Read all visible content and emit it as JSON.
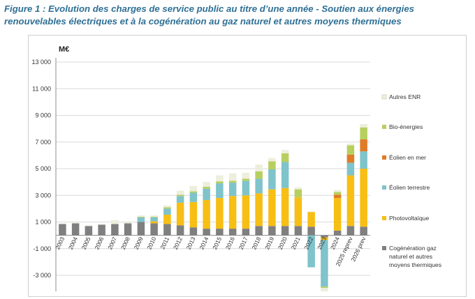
{
  "figure": {
    "title_line1": "Figure 1 : Evolution des charges de service public au titre d’une année - Soutien aux énergies",
    "title_line2": "renouvelables électriques et à la cogénération au gaz naturel et autres moyens thermiques"
  },
  "chart_data": {
    "type": "bar",
    "stacked": true,
    "unit_label": "M€",
    "ylim": [
      -4200,
      13000
    ],
    "yticks": [
      13000,
      11000,
      9000,
      7000,
      5000,
      3000,
      1000,
      -1000,
      -3000
    ],
    "ytick_labels": [
      "13 000",
      "11 000",
      "9 000",
      "7 000",
      "5 000",
      "3 000",
      "1 000",
      "-1 000",
      "-3 000"
    ],
    "grid": "horizontal",
    "legend_position": "right",
    "categories": [
      "2003",
      "2004",
      "2005",
      "2006",
      "2007",
      "2008",
      "2009",
      "2010",
      "2011",
      "2012",
      "2013",
      "2014",
      "2015",
      "2016",
      "2017",
      "2018",
      "2019",
      "2020",
      "2021",
      "2022",
      "2023",
      "2024",
      "2025 reprev",
      "2026 prev"
    ],
    "series": [
      {
        "name": "Cogénération gaz naturel et autres moyens thermiques",
        "color": "#7f7f7f",
        "values": [
          850,
          900,
          700,
          800,
          850,
          900,
          1000,
          900,
          850,
          750,
          600,
          500,
          500,
          500,
          500,
          700,
          700,
          700,
          700,
          650,
          -150,
          350,
          700,
          650
        ]
      },
      {
        "name": "Photovoltaïque",
        "color": "#f7be14",
        "values": [
          0,
          0,
          0,
          0,
          0,
          0,
          0,
          150,
          700,
          1700,
          1900,
          2150,
          2300,
          2450,
          2500,
          2450,
          2750,
          2850,
          2150,
          1100,
          -200,
          2450,
          3800,
          4350
        ]
      },
      {
        "name": "Éolien terrestre",
        "color": "#7fc3cb",
        "values": [
          0,
          0,
          0,
          0,
          0,
          0,
          350,
          300,
          450,
          500,
          700,
          850,
          1100,
          1000,
          1100,
          1100,
          1500,
          1950,
          0,
          -2400,
          -3500,
          0,
          950,
          1300
        ]
      },
      {
        "name": "Éolien en mer",
        "color": "#e07b28",
        "values": [
          0,
          0,
          0,
          0,
          0,
          0,
          0,
          0,
          0,
          0,
          0,
          0,
          0,
          0,
          0,
          0,
          0,
          0,
          0,
          0,
          0,
          250,
          600,
          900
        ]
      },
      {
        "name": "Bio-énergies",
        "color": "#b7cf5f",
        "values": [
          0,
          0,
          0,
          0,
          0,
          0,
          50,
          50,
          100,
          100,
          100,
          150,
          150,
          150,
          150,
          550,
          600,
          650,
          600,
          0,
          -100,
          200,
          700,
          900
        ]
      },
      {
        "name": "Autres ENR",
        "color": "#eeeedd",
        "values": [
          50,
          50,
          50,
          50,
          300,
          100,
          100,
          100,
          150,
          300,
          400,
          350,
          450,
          550,
          450,
          500,
          250,
          250,
          150,
          50,
          -250,
          150,
          150,
          250
        ]
      }
    ]
  },
  "legend": [
    {
      "label": "Autres ENR",
      "color": "#eeeedd"
    },
    {
      "label": "Bio-énergies",
      "color": "#b7cf5f"
    },
    {
      "label": "Éolien en mer",
      "color": "#e07b28"
    },
    {
      "label": "Éolien terrestre",
      "color": "#7fc3cb"
    },
    {
      "label": "Photovoltaïque",
      "color": "#f7be14"
    },
    {
      "label": "Cogénération gaz naturel et autres moyens thermiques",
      "color": "#7f7f7f"
    }
  ]
}
